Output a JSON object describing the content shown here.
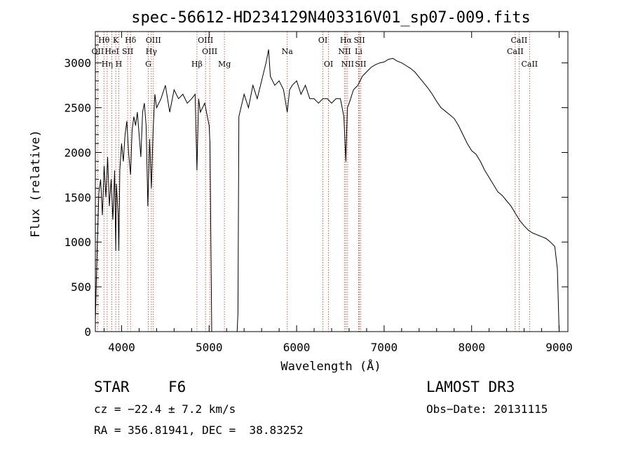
{
  "chart_data": {
    "type": "line",
    "title": "spec-56612-HD234129N403316V01_sp07-009.fits",
    "xlabel": "Wavelength (Å)",
    "ylabel": "Flux (relative)",
    "xlim": [
      3700,
      9100
    ],
    "ylim": [
      0,
      3350
    ],
    "xticks": [
      4000,
      5000,
      6000,
      7000,
      8000,
      9000
    ],
    "yticks": [
      0,
      500,
      1000,
      1500,
      2000,
      2500,
      3000
    ],
    "series": [
      {
        "name": "flux",
        "x": [
          3700,
          3720,
          3740,
          3760,
          3780,
          3800,
          3820,
          3840,
          3860,
          3880,
          3900,
          3920,
          3933,
          3940,
          3960,
          3968,
          3980,
          4000,
          4020,
          4040,
          4060,
          4080,
          4102,
          4120,
          4140,
          4160,
          4180,
          4200,
          4220,
          4240,
          4260,
          4280,
          4300,
          4320,
          4340,
          4360,
          4380,
          4400,
          4450,
          4500,
          4550,
          4600,
          4650,
          4700,
          4750,
          4800,
          4840,
          4861,
          4880,
          4900,
          4950,
          5000,
          5010,
          5030,
          5060,
          5100,
          5150,
          5200,
          5250,
          5300,
          5320,
          5330,
          5340,
          5400,
          5450,
          5500,
          5550,
          5600,
          5650,
          5680,
          5700,
          5750,
          5800,
          5850,
          5893,
          5920,
          5950,
          6000,
          6050,
          6100,
          6150,
          6200,
          6250,
          6300,
          6350,
          6400,
          6450,
          6500,
          6540,
          6563,
          6580,
          6600,
          6650,
          6700,
          6750,
          6800,
          6850,
          6900,
          6950,
          7000,
          7050,
          7100,
          7150,
          7200,
          7250,
          7300,
          7350,
          7400,
          7450,
          7500,
          7550,
          7600,
          7650,
          7700,
          7750,
          7800,
          7850,
          7900,
          7950,
          8000,
          8050,
          8100,
          8150,
          8200,
          8250,
          8300,
          8350,
          8400,
          8450,
          8500,
          8550,
          8600,
          8650,
          8700,
          8750,
          8800,
          8850,
          8900,
          8950,
          8980,
          9000
        ],
        "y": [
          120,
          900,
          1550,
          1700,
          1300,
          1850,
          1500,
          1950,
          1400,
          1700,
          1250,
          1800,
          900,
          1650,
          1300,
          900,
          1800,
          2100,
          1900,
          2200,
          2350,
          2000,
          1750,
          2250,
          2400,
          2300,
          2450,
          2200,
          1950,
          2450,
          2550,
          2300,
          1400,
          2150,
          1600,
          2250,
          2650,
          2500,
          2600,
          2750,
          2450,
          2700,
          2600,
          2650,
          2550,
          2600,
          2650,
          1800,
          2600,
          2450,
          2550,
          2300,
          2100,
          0,
          0,
          0,
          0,
          0,
          0,
          0,
          0,
          200,
          2400,
          2650,
          2500,
          2750,
          2600,
          2800,
          3000,
          3150,
          2850,
          2750,
          2800,
          2700,
          2450,
          2700,
          2750,
          2800,
          2650,
          2750,
          2600,
          2600,
          2550,
          2600,
          2600,
          2550,
          2600,
          2600,
          2400,
          1900,
          2500,
          2550,
          2700,
          2750,
          2850,
          2900,
          2950,
          2980,
          3000,
          3010,
          3040,
          3050,
          3020,
          3000,
          2970,
          2940,
          2900,
          2840,
          2780,
          2720,
          2650,
          2570,
          2500,
          2460,
          2420,
          2380,
          2300,
          2200,
          2100,
          2020,
          1980,
          1900,
          1800,
          1720,
          1640,
          1560,
          1520,
          1460,
          1400,
          1320,
          1240,
          1180,
          1130,
          1100,
          1080,
          1060,
          1040,
          1000,
          950,
          700,
          0
        ]
      }
    ],
    "annotations": [
      {
        "label": "Hθ",
        "x": 3798,
        "row": 1
      },
      {
        "label": "OII",
        "x": 3727,
        "row": 2
      },
      {
        "label": "Hη",
        "x": 3835,
        "row": 3
      },
      {
        "label": "K",
        "x": 3933,
        "row": 1
      },
      {
        "label": "HeI",
        "x": 3889,
        "row": 2
      },
      {
        "label": "H",
        "x": 3968,
        "row": 3
      },
      {
        "label": "Hδ",
        "x": 4102,
        "row": 1
      },
      {
        "label": "SII",
        "x": 4069,
        "row": 2
      },
      {
        "label": "OIII",
        "x": 4363,
        "row": 1
      },
      {
        "label": "Hγ",
        "x": 4340,
        "row": 2
      },
      {
        "label": "G",
        "x": 4305,
        "row": 3
      },
      {
        "label": "OIII",
        "x": 4959,
        "row": 1
      },
      {
        "label": "OIII",
        "x": 5007,
        "row": 2
      },
      {
        "label": "Hβ",
        "x": 4861,
        "row": 3
      },
      {
        "label": "Mg",
        "x": 5175,
        "row": 3
      },
      {
        "label": "Na",
        "x": 5893,
        "row": 2
      },
      {
        "label": "OI",
        "x": 6300,
        "row": 1
      },
      {
        "label": "OI",
        "x": 6364,
        "row": 3
      },
      {
        "label": "Hα",
        "x": 6563,
        "row": 1
      },
      {
        "label": "NII",
        "x": 6548,
        "row": 2
      },
      {
        "label": "NII",
        "x": 6583,
        "row": 3
      },
      {
        "label": "SII",
        "x": 6717,
        "row": 1
      },
      {
        "label": "Li",
        "x": 6708,
        "row": 2
      },
      {
        "label": "SII",
        "x": 6731,
        "row": 3
      },
      {
        "label": "CaII",
        "x": 8542,
        "row": 1
      },
      {
        "label": "CaII",
        "x": 8498,
        "row": 2
      },
      {
        "label": "CaII",
        "x": 8662,
        "row": 3
      }
    ],
    "grid": false,
    "legend": "none"
  },
  "info": {
    "object_class": "STAR",
    "subclass": "F6",
    "survey": "LAMOST DR3",
    "cz": "cz = −22.4 ± 7.2 km/s",
    "obs_date": "Obs−Date: 20131115",
    "coords": "RA = 356.81941, DEC =  38.83252"
  }
}
